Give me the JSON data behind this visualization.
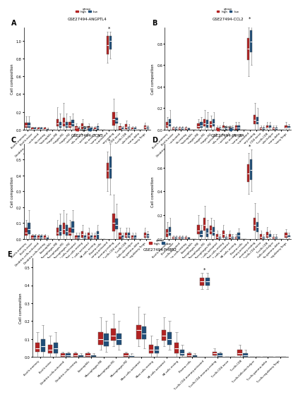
{
  "subplot_titles": [
    "GSE27494-ANGPTL4",
    "GSE27494-CCL2",
    "GSE27494-CCN3",
    "GSE27494-INHBA",
    "GSE27494-THBS2"
  ],
  "high_color": "#b22222",
  "low_color": "#1f4e79",
  "ylabel": "Cell composition",
  "cell_types": [
    "B.cells.memory",
    "B.cells.naive",
    "Dendritic.cells.activated",
    "Dendritic.cells.resting",
    "Eosinophils",
    "Macrophages.M0",
    "Macrophages.M1",
    "Macrophages.M2",
    "Mast.cells.activated",
    "Mast.cells.resting",
    "NK.cells.activated",
    "NK.cells.resting",
    "Plasma.cells",
    "T.cells.CD4.memory.activated",
    "T.cells.CD4.memory.resting",
    "T.cells.CD4.naive",
    "T.cells.CD8",
    "T.cells.follicular.helper",
    "T.cells.gamma.delta",
    "T.cells.regulatory.Tregs"
  ],
  "subplot_data": {
    "A": {
      "high_median": [
        0.05,
        0.01,
        0.01,
        0.01,
        0.0,
        0.07,
        0.08,
        0.05,
        0.02,
        0.04,
        0.02,
        0.01,
        0.0,
        0.95,
        0.12,
        0.02,
        0.03,
        0.01,
        0.0,
        0.03
      ],
      "low_median": [
        0.05,
        0.01,
        0.01,
        0.0,
        0.0,
        0.05,
        0.05,
        0.07,
        0.01,
        0.01,
        0.01,
        0.02,
        0.0,
        1.0,
        0.1,
        0.01,
        0.02,
        0.01,
        0.0,
        0.02
      ],
      "high_q1": [
        0.02,
        0.0,
        0.0,
        0.0,
        0.0,
        0.04,
        0.04,
        0.02,
        0.0,
        0.01,
        0.0,
        0.0,
        0.0,
        0.85,
        0.05,
        0.0,
        0.01,
        0.0,
        0.0,
        0.01
      ],
      "high_q3": [
        0.08,
        0.02,
        0.02,
        0.02,
        0.0,
        0.12,
        0.13,
        0.09,
        0.04,
        0.07,
        0.04,
        0.02,
        0.0,
        1.05,
        0.2,
        0.04,
        0.06,
        0.02,
        0.0,
        0.05
      ],
      "low_q1": [
        0.02,
        0.0,
        0.0,
        0.0,
        0.0,
        0.02,
        0.02,
        0.04,
        0.0,
        0.0,
        0.0,
        0.0,
        0.0,
        0.9,
        0.07,
        0.0,
        0.01,
        0.0,
        0.0,
        0.01
      ],
      "low_q3": [
        0.08,
        0.02,
        0.02,
        0.01,
        0.0,
        0.09,
        0.09,
        0.11,
        0.02,
        0.02,
        0.02,
        0.04,
        0.0,
        1.05,
        0.13,
        0.02,
        0.03,
        0.02,
        0.0,
        0.03
      ],
      "high_whisker_low": [
        0.0,
        0.0,
        0.0,
        0.0,
        0.0,
        0.0,
        0.0,
        0.0,
        0.0,
        0.0,
        0.0,
        0.0,
        0.0,
        0.75,
        0.0,
        0.0,
        0.0,
        0.0,
        0.0,
        0.0
      ],
      "high_whisker_high": [
        0.15,
        0.03,
        0.03,
        0.03,
        0.0,
        0.25,
        0.3,
        0.15,
        0.07,
        0.12,
        0.07,
        0.04,
        0.0,
        1.1,
        0.35,
        0.07,
        0.1,
        0.04,
        0.0,
        0.08
      ],
      "low_whisker_low": [
        0.0,
        0.0,
        0.0,
        0.0,
        0.0,
        0.0,
        0.0,
        0.0,
        0.0,
        0.0,
        0.0,
        0.0,
        0.0,
        0.8,
        0.0,
        0.0,
        0.0,
        0.0,
        0.0,
        0.0
      ],
      "low_whisker_high": [
        0.15,
        0.03,
        0.03,
        0.02,
        0.0,
        0.18,
        0.18,
        0.18,
        0.04,
        0.04,
        0.04,
        0.07,
        0.0,
        1.1,
        0.2,
        0.04,
        0.06,
        0.04,
        0.0,
        0.05
      ],
      "ylim": [
        0,
        1.15
      ],
      "yticks": [
        0.0,
        0.2,
        0.4,
        0.6,
        0.8,
        1.0
      ],
      "significant": [
        13
      ]
    },
    "B": {
      "high_median": [
        0.04,
        0.01,
        0.01,
        0.01,
        0.0,
        0.03,
        0.06,
        0.05,
        0.01,
        0.02,
        0.01,
        0.02,
        0.0,
        0.75,
        0.09,
        0.01,
        0.02,
        0.01,
        0.0,
        0.02
      ],
      "low_median": [
        0.06,
        0.01,
        0.01,
        0.0,
        0.0,
        0.04,
        0.05,
        0.06,
        0.01,
        0.01,
        0.01,
        0.02,
        0.0,
        0.82,
        0.08,
        0.01,
        0.02,
        0.01,
        0.0,
        0.02
      ],
      "high_q1": [
        0.02,
        0.0,
        0.0,
        0.0,
        0.0,
        0.01,
        0.03,
        0.02,
        0.0,
        0.01,
        0.0,
        0.0,
        0.0,
        0.65,
        0.05,
        0.0,
        0.01,
        0.0,
        0.0,
        0.01
      ],
      "high_q3": [
        0.07,
        0.02,
        0.02,
        0.02,
        0.0,
        0.06,
        0.1,
        0.08,
        0.02,
        0.04,
        0.02,
        0.04,
        0.0,
        0.85,
        0.14,
        0.02,
        0.04,
        0.02,
        0.0,
        0.04
      ],
      "low_q1": [
        0.03,
        0.0,
        0.0,
        0.0,
        0.0,
        0.02,
        0.02,
        0.03,
        0.0,
        0.0,
        0.0,
        0.0,
        0.0,
        0.72,
        0.05,
        0.0,
        0.01,
        0.0,
        0.0,
        0.01
      ],
      "low_q3": [
        0.1,
        0.02,
        0.02,
        0.01,
        0.0,
        0.07,
        0.09,
        0.1,
        0.02,
        0.02,
        0.02,
        0.04,
        0.0,
        0.92,
        0.12,
        0.02,
        0.04,
        0.02,
        0.0,
        0.03
      ],
      "high_whisker_low": [
        0.0,
        0.0,
        0.0,
        0.0,
        0.0,
        0.0,
        0.0,
        0.0,
        0.0,
        0.0,
        0.0,
        0.0,
        0.0,
        0.5,
        0.0,
        0.0,
        0.0,
        0.0,
        0.0,
        0.0
      ],
      "high_whisker_high": [
        0.12,
        0.03,
        0.03,
        0.03,
        0.0,
        0.1,
        0.18,
        0.13,
        0.04,
        0.07,
        0.04,
        0.07,
        0.0,
        0.95,
        0.25,
        0.04,
        0.07,
        0.04,
        0.0,
        0.07
      ],
      "low_whisker_low": [
        0.0,
        0.0,
        0.0,
        0.0,
        0.0,
        0.0,
        0.0,
        0.0,
        0.0,
        0.0,
        0.0,
        0.0,
        0.0,
        0.6,
        0.0,
        0.0,
        0.0,
        0.0,
        0.0,
        0.0
      ],
      "low_whisker_high": [
        0.18,
        0.03,
        0.03,
        0.02,
        0.0,
        0.12,
        0.16,
        0.16,
        0.04,
        0.04,
        0.04,
        0.07,
        0.0,
        1.0,
        0.2,
        0.04,
        0.07,
        0.04,
        0.0,
        0.05
      ],
      "ylim": [
        0,
        0.95
      ],
      "yticks": [
        0.0,
        0.2,
        0.4,
        0.6,
        0.8
      ],
      "significant": [
        13
      ]
    },
    "C": {
      "high_median": [
        0.04,
        0.01,
        0.01,
        0.01,
        0.0,
        0.04,
        0.06,
        0.04,
        0.01,
        0.03,
        0.02,
        0.01,
        0.0,
        0.43,
        0.1,
        0.02,
        0.02,
        0.01,
        0.0,
        0.02
      ],
      "low_median": [
        0.06,
        0.01,
        0.01,
        0.0,
        0.0,
        0.05,
        0.05,
        0.07,
        0.01,
        0.01,
        0.01,
        0.03,
        0.0,
        0.45,
        0.09,
        0.01,
        0.02,
        0.01,
        0.0,
        0.02
      ],
      "high_q1": [
        0.02,
        0.0,
        0.0,
        0.0,
        0.0,
        0.02,
        0.03,
        0.02,
        0.0,
        0.01,
        0.0,
        0.0,
        0.0,
        0.38,
        0.05,
        0.0,
        0.01,
        0.0,
        0.0,
        0.01
      ],
      "high_q3": [
        0.07,
        0.02,
        0.02,
        0.02,
        0.0,
        0.07,
        0.1,
        0.07,
        0.02,
        0.05,
        0.04,
        0.02,
        0.0,
        0.48,
        0.16,
        0.04,
        0.04,
        0.02,
        0.0,
        0.04
      ],
      "low_q1": [
        0.03,
        0.0,
        0.0,
        0.0,
        0.0,
        0.02,
        0.02,
        0.04,
        0.0,
        0.0,
        0.0,
        0.0,
        0.0,
        0.38,
        0.06,
        0.0,
        0.01,
        0.0,
        0.0,
        0.01
      ],
      "low_q3": [
        0.1,
        0.02,
        0.02,
        0.01,
        0.0,
        0.09,
        0.09,
        0.11,
        0.02,
        0.02,
        0.02,
        0.05,
        0.0,
        0.52,
        0.13,
        0.02,
        0.04,
        0.02,
        0.0,
        0.03
      ],
      "high_whisker_low": [
        0.0,
        0.0,
        0.0,
        0.0,
        0.0,
        0.0,
        0.0,
        0.0,
        0.0,
        0.0,
        0.0,
        0.0,
        0.0,
        0.3,
        0.0,
        0.0,
        0.0,
        0.0,
        0.0,
        0.0
      ],
      "high_whisker_high": [
        0.12,
        0.03,
        0.03,
        0.03,
        0.0,
        0.12,
        0.18,
        0.12,
        0.04,
        0.09,
        0.07,
        0.04,
        0.0,
        0.55,
        0.28,
        0.07,
        0.07,
        0.04,
        0.0,
        0.07
      ],
      "low_whisker_low": [
        0.0,
        0.0,
        0.0,
        0.0,
        0.0,
        0.0,
        0.0,
        0.0,
        0.0,
        0.0,
        0.0,
        0.0,
        0.0,
        0.28,
        0.0,
        0.0,
        0.0,
        0.0,
        0.0,
        0.0
      ],
      "low_whisker_high": [
        0.18,
        0.03,
        0.03,
        0.02,
        0.0,
        0.16,
        0.16,
        0.18,
        0.04,
        0.04,
        0.04,
        0.09,
        0.0,
        0.6,
        0.22,
        0.04,
        0.07,
        0.04,
        0.0,
        0.05
      ],
      "ylim": [
        0,
        0.6
      ],
      "yticks": [
        0.0,
        0.1,
        0.2,
        0.3,
        0.4,
        0.5
      ],
      "significant": [
        13
      ]
    },
    "D": {
      "high_median": [
        0.05,
        0.01,
        0.01,
        0.01,
        0.0,
        0.07,
        0.12,
        0.07,
        0.02,
        0.04,
        0.02,
        0.01,
        0.0,
        0.55,
        0.12,
        0.02,
        0.03,
        0.01,
        0.0,
        0.03
      ],
      "low_median": [
        0.06,
        0.01,
        0.01,
        0.0,
        0.0,
        0.04,
        0.05,
        0.06,
        0.01,
        0.01,
        0.01,
        0.03,
        0.0,
        0.58,
        0.1,
        0.01,
        0.02,
        0.01,
        0.0,
        0.02
      ],
      "high_q1": [
        0.02,
        0.0,
        0.0,
        0.0,
        0.0,
        0.04,
        0.07,
        0.04,
        0.0,
        0.01,
        0.0,
        0.0,
        0.0,
        0.48,
        0.07,
        0.0,
        0.01,
        0.0,
        0.0,
        0.01
      ],
      "high_q3": [
        0.08,
        0.02,
        0.02,
        0.02,
        0.0,
        0.12,
        0.18,
        0.11,
        0.04,
        0.07,
        0.04,
        0.02,
        0.0,
        0.63,
        0.18,
        0.04,
        0.06,
        0.02,
        0.0,
        0.05
      ],
      "low_q1": [
        0.03,
        0.0,
        0.0,
        0.0,
        0.0,
        0.02,
        0.02,
        0.03,
        0.0,
        0.0,
        0.0,
        0.0,
        0.0,
        0.5,
        0.06,
        0.0,
        0.01,
        0.0,
        0.0,
        0.01
      ],
      "low_q3": [
        0.1,
        0.02,
        0.02,
        0.01,
        0.0,
        0.07,
        0.09,
        0.1,
        0.02,
        0.02,
        0.02,
        0.05,
        0.0,
        0.67,
        0.14,
        0.02,
        0.04,
        0.02,
        0.0,
        0.03
      ],
      "high_whisker_low": [
        0.0,
        0.0,
        0.0,
        0.0,
        0.0,
        0.0,
        0.0,
        0.0,
        0.0,
        0.0,
        0.0,
        0.0,
        0.0,
        0.38,
        0.0,
        0.0,
        0.0,
        0.0,
        0.0,
        0.0
      ],
      "high_whisker_high": [
        0.14,
        0.03,
        0.03,
        0.03,
        0.0,
        0.2,
        0.28,
        0.18,
        0.07,
        0.12,
        0.07,
        0.04,
        0.0,
        0.72,
        0.3,
        0.07,
        0.1,
        0.04,
        0.0,
        0.08
      ],
      "low_whisker_low": [
        0.0,
        0.0,
        0.0,
        0.0,
        0.0,
        0.0,
        0.0,
        0.0,
        0.0,
        0.0,
        0.0,
        0.0,
        0.0,
        0.4,
        0.0,
        0.0,
        0.0,
        0.0,
        0.0,
        0.0
      ],
      "low_whisker_high": [
        0.18,
        0.03,
        0.03,
        0.02,
        0.0,
        0.12,
        0.16,
        0.16,
        0.04,
        0.04,
        0.04,
        0.09,
        0.0,
        0.75,
        0.22,
        0.04,
        0.07,
        0.04,
        0.0,
        0.05
      ],
      "ylim": [
        0,
        0.8
      ],
      "yticks": [
        0.0,
        0.2,
        0.4,
        0.6
      ],
      "significant": [
        13
      ]
    },
    "E": {
      "high_median": [
        0.05,
        0.04,
        0.01,
        0.01,
        0.01,
        0.1,
        0.12,
        0.01,
        0.15,
        0.04,
        0.12,
        0.05,
        0.01,
        0.42,
        0.02,
        0.0,
        0.02,
        0.0,
        0.0,
        0.0
      ],
      "low_median": [
        0.06,
        0.05,
        0.01,
        0.0,
        0.0,
        0.09,
        0.1,
        0.01,
        0.13,
        0.04,
        0.1,
        0.02,
        0.0,
        0.42,
        0.01,
        0.0,
        0.01,
        0.0,
        0.0,
        0.0
      ],
      "high_q1": [
        0.03,
        0.02,
        0.0,
        0.0,
        0.0,
        0.07,
        0.09,
        0.0,
        0.1,
        0.02,
        0.09,
        0.02,
        0.0,
        0.4,
        0.01,
        0.0,
        0.01,
        0.0,
        0.0,
        0.0
      ],
      "high_q3": [
        0.08,
        0.07,
        0.02,
        0.02,
        0.02,
        0.14,
        0.16,
        0.02,
        0.18,
        0.07,
        0.15,
        0.08,
        0.02,
        0.44,
        0.03,
        0.0,
        0.04,
        0.0,
        0.0,
        0.0
      ],
      "low_q1": [
        0.03,
        0.02,
        0.0,
        0.0,
        0.0,
        0.06,
        0.07,
        0.0,
        0.1,
        0.02,
        0.07,
        0.01,
        0.0,
        0.4,
        0.0,
        0.0,
        0.0,
        0.0,
        0.0,
        0.0
      ],
      "low_q3": [
        0.1,
        0.08,
        0.02,
        0.01,
        0.01,
        0.13,
        0.13,
        0.01,
        0.17,
        0.06,
        0.14,
        0.04,
        0.01,
        0.44,
        0.02,
        0.0,
        0.02,
        0.0,
        0.0,
        0.0
      ],
      "high_whisker_low": [
        0.0,
        0.0,
        0.0,
        0.0,
        0.0,
        0.04,
        0.06,
        0.0,
        0.06,
        0.0,
        0.06,
        0.0,
        0.0,
        0.38,
        0.0,
        0.0,
        0.0,
        0.0,
        0.0,
        0.0
      ],
      "high_whisker_high": [
        0.14,
        0.12,
        0.03,
        0.03,
        0.03,
        0.22,
        0.24,
        0.03,
        0.28,
        0.12,
        0.22,
        0.14,
        0.03,
        0.47,
        0.05,
        0.0,
        0.07,
        0.0,
        0.0,
        0.0
      ],
      "low_whisker_low": [
        0.0,
        0.0,
        0.0,
        0.0,
        0.0,
        0.03,
        0.04,
        0.0,
        0.05,
        0.0,
        0.04,
        0.0,
        0.0,
        0.38,
        0.0,
        0.0,
        0.0,
        0.0,
        0.0,
        0.0
      ],
      "low_whisker_high": [
        0.18,
        0.14,
        0.03,
        0.02,
        0.02,
        0.2,
        0.2,
        0.02,
        0.24,
        0.1,
        0.2,
        0.07,
        0.02,
        0.47,
        0.03,
        0.0,
        0.04,
        0.0,
        0.0,
        0.0
      ],
      "ylim": [
        0,
        0.55
      ],
      "yticks": [
        0.0,
        0.1,
        0.2,
        0.3,
        0.4,
        0.5
      ],
      "significant": [
        13
      ]
    }
  }
}
